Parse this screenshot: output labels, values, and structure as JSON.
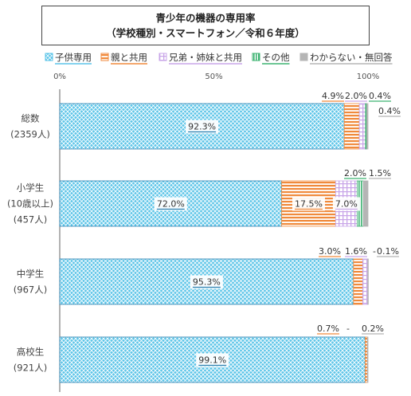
{
  "chart_data": {
    "type": "bar",
    "orientation": "horizontal",
    "stacked": true,
    "percent": true,
    "title": "青少年の機器の専用率",
    "subtitle": "（学校種別・スマートフォン／令和６年度）",
    "xlim": [
      0,
      100
    ],
    "x_ticks": [
      "0%",
      "50%",
      "100%"
    ],
    "legend_position": "top",
    "grid": false,
    "categories": [
      {
        "name": "総数",
        "n": "(2359人)"
      },
      {
        "name": "小学生",
        "sub": "(10歳以上)",
        "n": "(457人)"
      },
      {
        "name": "中学生",
        "n": "(967人)"
      },
      {
        "name": "高校生",
        "n": "(921人)"
      }
    ],
    "series": [
      {
        "name": "子供専用",
        "color": "#5bc4e8",
        "pattern": "cross",
        "values": [
          92.3,
          72.0,
          95.3,
          99.1
        ],
        "labels": [
          "92.3%",
          "72.0%",
          "95.3%",
          "99.1%"
        ]
      },
      {
        "name": "親と共用",
        "color": "#f08a3c",
        "pattern": "hline",
        "values": [
          4.9,
          17.5,
          3.0,
          0.7
        ],
        "labels": [
          "4.9%",
          "17.5%",
          "3.0%",
          "0.7%"
        ]
      },
      {
        "name": "兄弟・姉妹と共用",
        "color": "#c9a6e8",
        "pattern": "grid",
        "values": [
          2.0,
          7.0,
          1.6,
          0.0
        ],
        "labels": [
          "2.0%",
          "7.0%",
          "1.6%",
          ""
        ]
      },
      {
        "name": "その他",
        "color": "#3cb371",
        "pattern": "vline",
        "values": [
          0.4,
          2.0,
          0.0,
          0.0
        ],
        "labels": [
          "0.4%",
          "2.0%",
          "-",
          "-"
        ]
      },
      {
        "name": "わからない・無回答",
        "color": "#b5b5b5",
        "pattern": "solid",
        "values": [
          0.4,
          1.5,
          0.1,
          0.2
        ],
        "labels": [
          "0.4%",
          "1.5%",
          "0.1%",
          "0.2%"
        ]
      }
    ]
  }
}
